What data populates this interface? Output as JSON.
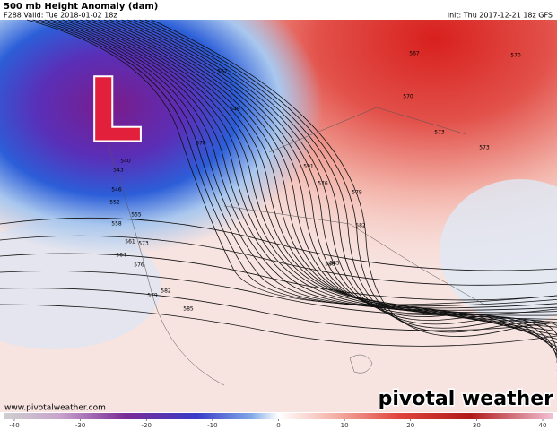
{
  "header": {
    "title": "500 mb Height Anomaly (dam)",
    "valid": "F288 Valid: Tue 2018-01-02 18z",
    "init": "Init: Thu 2017-12-21 18z GFS"
  },
  "map": {
    "low_marker": "L",
    "contour_labels": [
      540,
      543,
      546,
      549,
      552,
      555,
      558,
      561,
      564,
      567,
      570,
      573,
      576,
      579,
      582,
      585,
      588,
      591,
      567,
      570,
      573,
      576,
      579,
      582,
      585,
      570,
      573
    ],
    "credit": "www.pivotalweather.com",
    "logo": "pivotal weather"
  },
  "colorbar": {
    "ticks": [
      -40,
      -30,
      -20,
      -10,
      0,
      10,
      20,
      30,
      40
    ],
    "range": [
      -40,
      40
    ]
  }
}
